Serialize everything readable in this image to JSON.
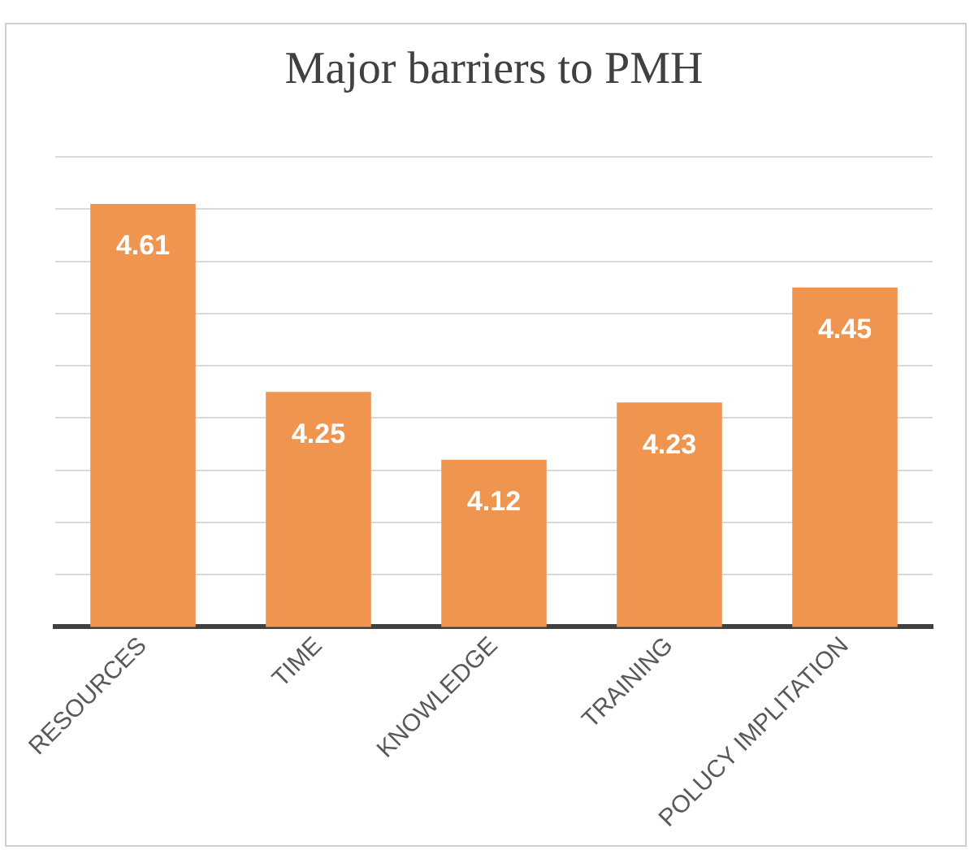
{
  "chart_data": {
    "type": "bar",
    "title": "Major barriers to PMH",
    "categories": [
      "RESOURCES",
      "TIME",
      "KNOWLEDGE",
      "TRAINING",
      "POLUCY IMPLITATION"
    ],
    "values": [
      4.61,
      4.25,
      4.12,
      4.23,
      4.45
    ],
    "color": "#f0954f",
    "ylim": [
      3.8,
      4.7
    ],
    "grid": "y",
    "tick_labels": "x",
    "data_labels": true
  }
}
